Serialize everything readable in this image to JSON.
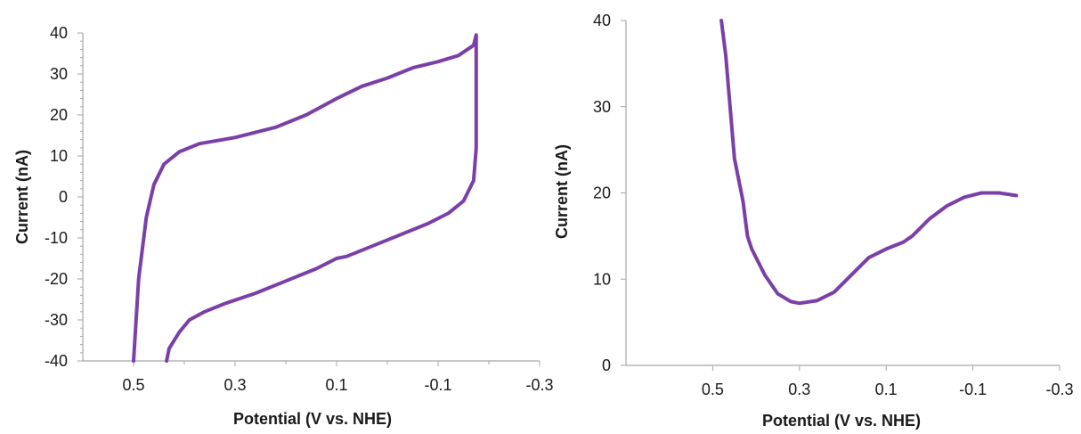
{
  "colors": {
    "series": "#7b3fa8",
    "axis": "#a6a6a6",
    "text": "#1a1a1a"
  },
  "chart_data": [
    {
      "type": "line",
      "title": "",
      "xlabel": "Potential (V vs. NHE)",
      "ylabel": "Current (nA)",
      "xlim": [
        0.6,
        -0.3
      ],
      "ylim": [
        -40,
        40
      ],
      "xticks": [
        0.5,
        0.3,
        0.1,
        -0.1,
        -0.3
      ],
      "xtick_labels": [
        "0.5",
        "0.3",
        "0.1",
        "-0.1",
        "-0.3"
      ],
      "yticks": [
        -40,
        -30,
        -20,
        -10,
        0,
        10,
        20,
        30,
        40
      ],
      "ytick_labels": [
        "-40",
        "-30",
        "-20",
        "-10",
        "0",
        "10",
        "20",
        "30",
        "40"
      ],
      "grid": false,
      "series": [
        {
          "x": [
            0.5,
            0.49,
            0.475,
            0.46,
            0.44,
            0.41,
            0.37,
            0.3,
            0.22,
            0.16,
            0.1,
            0.05,
            0.0,
            -0.05,
            -0.1,
            -0.14,
            -0.17,
            -0.175,
            -0.175,
            -0.17,
            -0.15,
            -0.12,
            -0.08,
            0.0,
            0.08,
            0.1,
            0.14,
            0.2,
            0.26,
            0.32,
            0.36,
            0.39,
            0.41,
            0.43,
            0.435
          ],
          "y": [
            -40,
            -20,
            -5,
            3,
            8,
            11,
            13,
            14.5,
            17,
            20,
            24,
            27,
            29,
            31.5,
            33,
            34.5,
            37,
            39.5,
            12,
            4,
            -1,
            -4,
            -6.5,
            -10.5,
            -14.5,
            -15,
            -17.5,
            -20.5,
            -23.5,
            -26,
            -28,
            -30,
            -33,
            -37,
            -40
          ]
        }
      ]
    },
    {
      "type": "line",
      "title": "",
      "xlabel": "Potential (V vs. NHE)",
      "ylabel": "Current (nA)",
      "xlim": [
        0.7,
        -0.3
      ],
      "ylim": [
        0,
        40
      ],
      "xticks": [
        0.5,
        0.3,
        0.1,
        -0.1,
        -0.3
      ],
      "xtick_labels": [
        "0.5",
        "0.3",
        "0.1",
        "-0.1",
        "-0.3"
      ],
      "yticks": [
        0,
        10,
        20,
        30,
        40
      ],
      "ytick_labels": [
        "0",
        "10",
        "20",
        "30",
        "40"
      ],
      "grid": false,
      "series": [
        {
          "x": [
            0.48,
            0.47,
            0.46,
            0.45,
            0.43,
            0.42,
            0.41,
            0.38,
            0.35,
            0.32,
            0.3,
            0.26,
            0.22,
            0.18,
            0.14,
            0.1,
            0.06,
            0.04,
            0.0,
            -0.04,
            -0.08,
            -0.12,
            -0.16,
            -0.2
          ],
          "y": [
            40,
            36,
            30,
            24,
            19,
            15,
            13.5,
            10.5,
            8.3,
            7.4,
            7.2,
            7.5,
            8.5,
            10.5,
            12.5,
            13.5,
            14.3,
            15,
            17,
            18.5,
            19.5,
            20,
            20,
            19.7
          ]
        }
      ]
    }
  ]
}
